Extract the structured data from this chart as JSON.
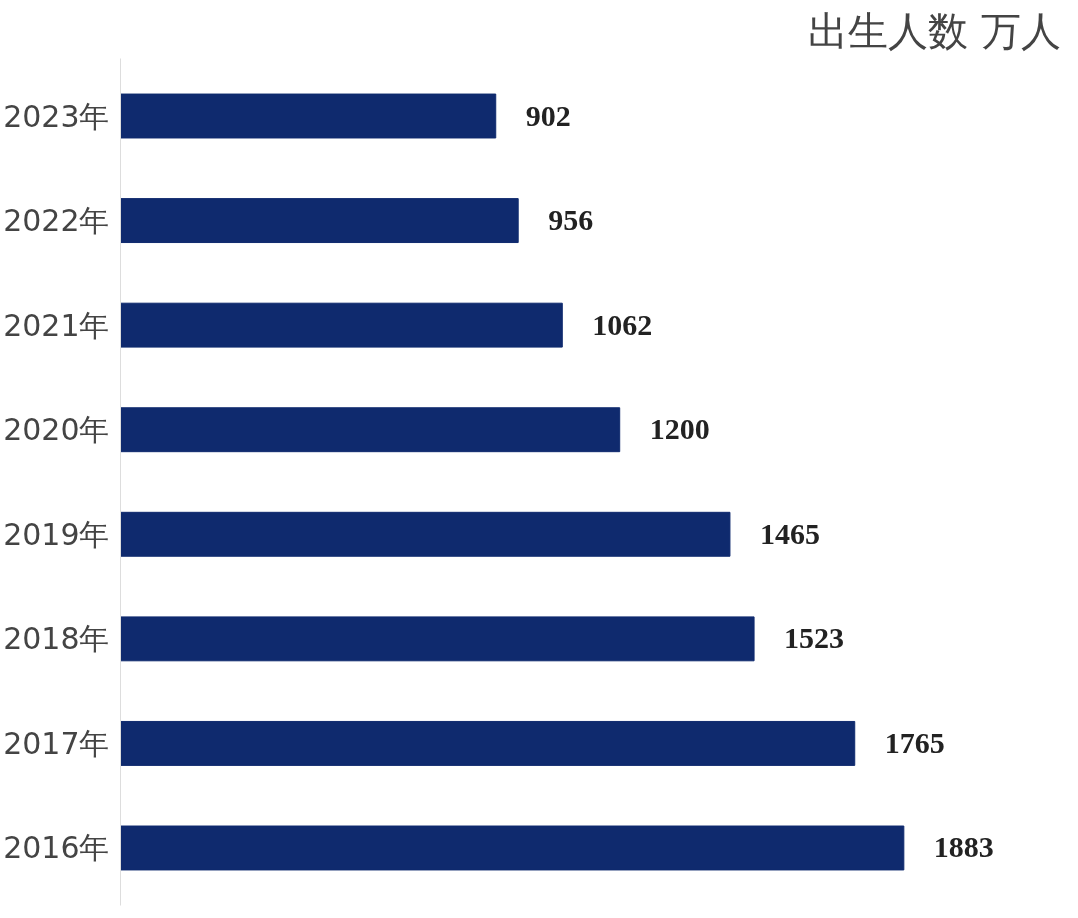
{
  "chart_data": {
    "type": "bar",
    "orientation": "horizontal",
    "title": "出生人数 万人",
    "categories": [
      "2023年",
      "2022年",
      "2021年",
      "2020年",
      "2019年",
      "2018年",
      "2017年",
      "2016年"
    ],
    "values": [
      902,
      956,
      1062,
      1200,
      1465,
      1523,
      1765,
      1883
    ],
    "color": "#0f2a6e",
    "data_labels": true,
    "grid": false
  }
}
